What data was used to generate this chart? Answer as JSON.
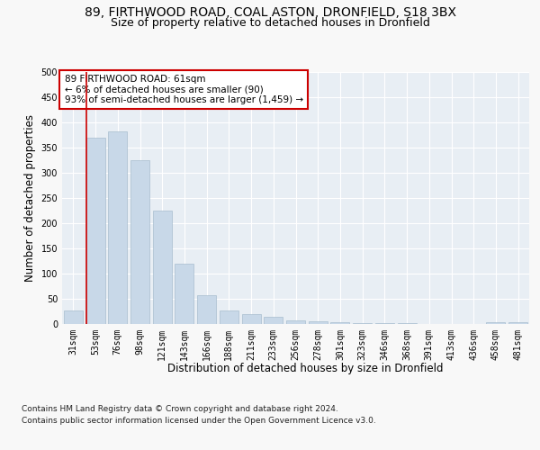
{
  "title_line1": "89, FIRTHWOOD ROAD, COAL ASTON, DRONFIELD, S18 3BX",
  "title_line2": "Size of property relative to detached houses in Dronfield",
  "xlabel": "Distribution of detached houses by size in Dronfield",
  "ylabel": "Number of detached properties",
  "footer_line1": "Contains HM Land Registry data © Crown copyright and database right 2024.",
  "footer_line2": "Contains public sector information licensed under the Open Government Licence v3.0.",
  "categories": [
    "31sqm",
    "53sqm",
    "76sqm",
    "98sqm",
    "121sqm",
    "143sqm",
    "166sqm",
    "188sqm",
    "211sqm",
    "233sqm",
    "256sqm",
    "278sqm",
    "301sqm",
    "323sqm",
    "346sqm",
    "368sqm",
    "391sqm",
    "413sqm",
    "436sqm",
    "458sqm",
    "481sqm"
  ],
  "values": [
    27,
    370,
    383,
    325,
    225,
    120,
    57,
    27,
    19,
    14,
    7,
    5,
    3,
    2,
    1,
    1,
    0,
    0,
    0,
    4,
    3
  ],
  "bar_color": "#c8d8e8",
  "bar_edge_color": "#a8bece",
  "annotation_box_text": "89 FIRTHWOOD ROAD: 61sqm\n← 6% of detached houses are smaller (90)\n93% of semi-detached houses are larger (1,459) →",
  "annotation_box_color": "#ffffff",
  "annotation_box_edge_color": "#cc0000",
  "vline_color": "#cc0000",
  "ylim": [
    0,
    500
  ],
  "yticks": [
    0,
    50,
    100,
    150,
    200,
    250,
    300,
    350,
    400,
    450,
    500
  ],
  "fig_bg_color": "#f8f8f8",
  "plot_bg_color": "#e8eef4",
  "grid_color": "#ffffff",
  "title_fontsize": 10,
  "subtitle_fontsize": 9,
  "axis_label_fontsize": 8.5,
  "tick_fontsize": 7,
  "footer_fontsize": 6.5,
  "annot_fontsize": 7.5
}
